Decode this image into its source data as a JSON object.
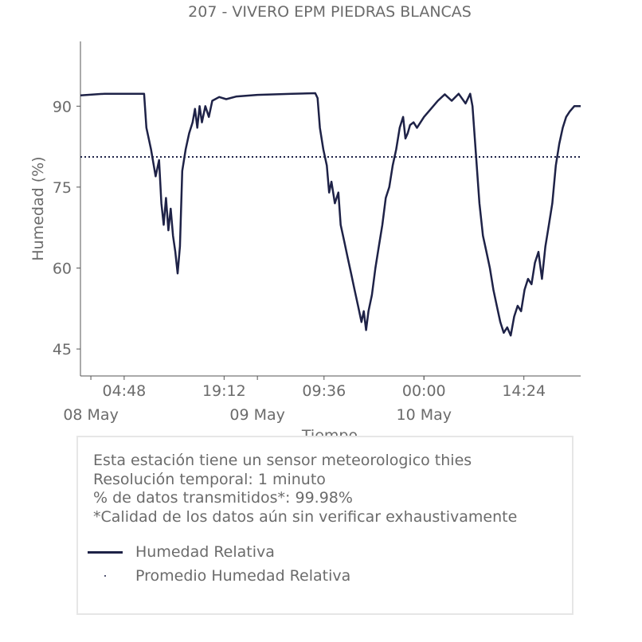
{
  "chart_data": {
    "type": "line",
    "title": "207 - VIVERO EPM PIEDRAS BLANCAS",
    "xlabel": "Tiempo",
    "ylabel": "Humedad (%)",
    "x_axis": "datetime",
    "xlim": [
      "2024-05-07T22:30",
      "2024-05-10T22:35"
    ],
    "ylim": [
      40,
      102
    ],
    "yticks": [
      45,
      60,
      75,
      90
    ],
    "xticks": [
      {
        "time": "2024-05-08T04:48",
        "label": "04:48",
        "date_label": ""
      },
      {
        "time": "2024-05-08T19:12",
        "label": "19:12",
        "date_label": ""
      },
      {
        "time": "2024-05-09T09:36",
        "label": "09:36",
        "date_label": ""
      },
      {
        "time": "2024-05-10T00:00",
        "label": "00:00",
        "date_label": ""
      },
      {
        "time": "2024-05-10T14:24",
        "label": "14:24",
        "date_label": ""
      }
    ],
    "date_ticks": [
      {
        "time": "2024-05-08T00:00",
        "label": "08 May"
      },
      {
        "time": "2024-05-09T00:00",
        "label": "09 May"
      },
      {
        "time": "2024-05-10T00:00",
        "label": "10 May"
      }
    ],
    "series": [
      {
        "name": "Humedad Relativa",
        "color": "#1e2247",
        "style": "solid",
        "points": [
          [
            "2024-05-07T22:30",
            92.0
          ],
          [
            "2024-05-08T02:00",
            92.3
          ],
          [
            "2024-05-08T05:00",
            92.3
          ],
          [
            "2024-05-08T07:40",
            92.3
          ],
          [
            "2024-05-08T08:00",
            86.0
          ],
          [
            "2024-05-08T08:40",
            82.0
          ],
          [
            "2024-05-08T09:20",
            77.0
          ],
          [
            "2024-05-08T09:50",
            80.0
          ],
          [
            "2024-05-08T10:10",
            72.0
          ],
          [
            "2024-05-08T10:30",
            68.0
          ],
          [
            "2024-05-08T10:50",
            73.0
          ],
          [
            "2024-05-08T11:10",
            67.0
          ],
          [
            "2024-05-08T11:30",
            71.0
          ],
          [
            "2024-05-08T11:50",
            66.0
          ],
          [
            "2024-05-08T12:10",
            63.0
          ],
          [
            "2024-05-08T12:30",
            59.0
          ],
          [
            "2024-05-08T12:50",
            64.0
          ],
          [
            "2024-05-08T13:10",
            78.0
          ],
          [
            "2024-05-08T13:40",
            82.0
          ],
          [
            "2024-05-08T14:10",
            85.0
          ],
          [
            "2024-05-08T14:40",
            87.0
          ],
          [
            "2024-05-08T15:00",
            89.5
          ],
          [
            "2024-05-08T15:20",
            86.0
          ],
          [
            "2024-05-08T15:40",
            90.0
          ],
          [
            "2024-05-08T16:00",
            87.0
          ],
          [
            "2024-05-08T16:30",
            90.0
          ],
          [
            "2024-05-08T17:00",
            88.0
          ],
          [
            "2024-05-08T17:30",
            91.0
          ],
          [
            "2024-05-08T18:30",
            91.7
          ],
          [
            "2024-05-08T19:30",
            91.3
          ],
          [
            "2024-05-08T21:00",
            91.8
          ],
          [
            "2024-05-09T00:00",
            92.1
          ],
          [
            "2024-05-09T05:00",
            92.3
          ],
          [
            "2024-05-09T08:20",
            92.4
          ],
          [
            "2024-05-09T08:40",
            91.5
          ],
          [
            "2024-05-09T09:00",
            86.0
          ],
          [
            "2024-05-09T09:30",
            82.0
          ],
          [
            "2024-05-09T10:00",
            79.0
          ],
          [
            "2024-05-09T10:20",
            74.0
          ],
          [
            "2024-05-09T10:40",
            76.0
          ],
          [
            "2024-05-09T11:10",
            72.0
          ],
          [
            "2024-05-09T11:40",
            74.0
          ],
          [
            "2024-05-09T12:00",
            68.0
          ],
          [
            "2024-05-09T12:30",
            65.0
          ],
          [
            "2024-05-09T13:00",
            62.0
          ],
          [
            "2024-05-09T13:30",
            59.0
          ],
          [
            "2024-05-09T14:00",
            56.0
          ],
          [
            "2024-05-09T14:30",
            53.0
          ],
          [
            "2024-05-09T15:00",
            50.0
          ],
          [
            "2024-05-09T15:20",
            52.0
          ],
          [
            "2024-05-09T15:40",
            48.5
          ],
          [
            "2024-05-09T16:00",
            52.0
          ],
          [
            "2024-05-09T16:30",
            55.0
          ],
          [
            "2024-05-09T17:00",
            60.0
          ],
          [
            "2024-05-09T17:30",
            64.0
          ],
          [
            "2024-05-09T18:00",
            68.0
          ],
          [
            "2024-05-09T18:30",
            73.0
          ],
          [
            "2024-05-09T19:00",
            75.0
          ],
          [
            "2024-05-09T19:30",
            79.0
          ],
          [
            "2024-05-09T20:00",
            82.0
          ],
          [
            "2024-05-09T20:30",
            86.0
          ],
          [
            "2024-05-09T21:00",
            88.0
          ],
          [
            "2024-05-09T21:20",
            84.0
          ],
          [
            "2024-05-09T21:40",
            85.0
          ],
          [
            "2024-05-09T22:00",
            86.5
          ],
          [
            "2024-05-09T22:30",
            87.0
          ],
          [
            "2024-05-09T23:00",
            86.0
          ],
          [
            "2024-05-10T00:00",
            88.0
          ],
          [
            "2024-05-10T01:00",
            89.5
          ],
          [
            "2024-05-10T02:00",
            91.0
          ],
          [
            "2024-05-10T03:00",
            92.2
          ],
          [
            "2024-05-10T04:00",
            91.0
          ],
          [
            "2024-05-10T05:00",
            92.3
          ],
          [
            "2024-05-10T06:00",
            90.5
          ],
          [
            "2024-05-10T06:40",
            92.3
          ],
          [
            "2024-05-10T07:00",
            90.0
          ],
          [
            "2024-05-10T07:20",
            84.0
          ],
          [
            "2024-05-10T07:40",
            78.0
          ],
          [
            "2024-05-10T08:00",
            72.0
          ],
          [
            "2024-05-10T08:30",
            66.0
          ],
          [
            "2024-05-10T09:00",
            63.0
          ],
          [
            "2024-05-10T09:30",
            60.0
          ],
          [
            "2024-05-10T10:00",
            56.0
          ],
          [
            "2024-05-10T10:30",
            53.0
          ],
          [
            "2024-05-10T11:00",
            50.0
          ],
          [
            "2024-05-10T11:30",
            48.0
          ],
          [
            "2024-05-10T12:00",
            49.0
          ],
          [
            "2024-05-10T12:30",
            47.5
          ],
          [
            "2024-05-10T13:00",
            51.0
          ],
          [
            "2024-05-10T13:30",
            53.0
          ],
          [
            "2024-05-10T14:00",
            52.0
          ],
          [
            "2024-05-10T14:30",
            56.0
          ],
          [
            "2024-05-10T15:00",
            58.0
          ],
          [
            "2024-05-10T15:30",
            57.0
          ],
          [
            "2024-05-10T16:00",
            61.0
          ],
          [
            "2024-05-10T16:30",
            63.0
          ],
          [
            "2024-05-10T17:00",
            58.0
          ],
          [
            "2024-05-10T17:30",
            64.0
          ],
          [
            "2024-05-10T18:00",
            68.0
          ],
          [
            "2024-05-10T18:30",
            72.0
          ],
          [
            "2024-05-10T19:00",
            79.0
          ],
          [
            "2024-05-10T19:30",
            83.0
          ],
          [
            "2024-05-10T20:00",
            86.0
          ],
          [
            "2024-05-10T20:30",
            88.0
          ],
          [
            "2024-05-10T21:00",
            89.0
          ],
          [
            "2024-05-10T21:40",
            90.0
          ],
          [
            "2024-05-10T22:35",
            90.0
          ]
        ]
      },
      {
        "name": "Promedio Humedad Relativa",
        "color": "#1e2247",
        "style": "dotted",
        "value": 80.6
      }
    ],
    "grid": false,
    "legend_position": "inside info box"
  },
  "info_box": {
    "lines": [
      "Esta estación tiene un sensor meteorologico thies",
      "Resolución temporal: 1 minuto",
      "% de datos transmitidos*: 99.98%",
      "*Calidad de los datos aún sin verificar exhaustivamente"
    ]
  }
}
